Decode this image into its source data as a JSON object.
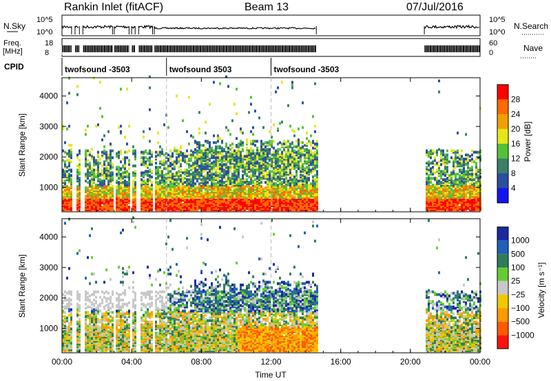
{
  "header": {
    "radar": "Rankin Inlet (fitACF)",
    "beam": "Beam 13",
    "date": "07/Jul/2016"
  },
  "noise_panel": {
    "left_label": "N.Sky",
    "left_ticks": [
      "10^5",
      "10^0"
    ],
    "right_label": "N.Search",
    "right_ticks": [
      "10^5",
      "10^0"
    ]
  },
  "freq_panel": {
    "left_label_1": "Freq.",
    "left_label_2": "[MHz]",
    "left_ticks": [
      "18",
      "8"
    ],
    "right_label": "Nave",
    "right_ticks": [
      "60",
      "0"
    ]
  },
  "cpid": {
    "label": "CPID",
    "segments": [
      {
        "start": 0,
        "end": 6,
        "label": "twofsound -3503"
      },
      {
        "start": 6,
        "end": 12,
        "label": "twofsound 3503"
      },
      {
        "start": 12,
        "end": 24,
        "label": "twofsound -3503"
      }
    ]
  },
  "colors": {
    "power_scale": [
      "#1414f0",
      "#2a4fa0",
      "#3a7f6a",
      "#55c03a",
      "#e6e61a",
      "#f0a000",
      "#ff6a00",
      "#ff0000"
    ],
    "velocity_scale": [
      "#1a2aa0",
      "#2060b8",
      "#2e7d5a",
      "#66cc33",
      "#c8c8c8",
      "#f0c800",
      "#ff9a00",
      "#ff5a00",
      "#ff1010"
    ]
  },
  "chart_data": [
    {
      "type": "heatmap",
      "panel": "power",
      "ylabel": "Slant Range [km]",
      "yticks": [
        "1000",
        "2000",
        "3000",
        "4000"
      ],
      "ylim": [
        200,
        4600
      ],
      "xlim": [
        0,
        24
      ],
      "cbar_label": "Power [dB]",
      "cbar_ticks": [
        "4",
        "8",
        "12",
        "16",
        "20",
        "24",
        "28"
      ],
      "data_intervals_hours": [
        [
          0,
          0.55
        ],
        [
          0.75,
          1.0
        ],
        [
          1.2,
          2.9
        ],
        [
          3.0,
          3.85
        ],
        [
          4.0,
          4.2
        ],
        [
          4.4,
          5.2
        ],
        [
          5.3,
          14.6
        ],
        [
          20.8,
          24
        ]
      ]
    },
    {
      "type": "heatmap",
      "panel": "velocity",
      "ylabel": "Slant Range [km]",
      "yticks": [
        "1000",
        "2000",
        "3000",
        "4000"
      ],
      "ylim": [
        200,
        4600
      ],
      "xlim": [
        0,
        24
      ],
      "xlabel": "Time UT",
      "xticks": [
        "00:00",
        "04:00",
        "08:00",
        "12:00",
        "16:00",
        "20:00",
        "00:00"
      ],
      "cbar_label": "Velocity [m s⁻¹]",
      "cbar_ticks": [
        "1000",
        "500",
        "100",
        "25",
        "−25",
        "−100",
        "−500",
        "−1000"
      ],
      "data_intervals_hours": [
        [
          0,
          0.55
        ],
        [
          0.75,
          1.0
        ],
        [
          1.2,
          2.9
        ],
        [
          3.0,
          3.85
        ],
        [
          4.0,
          4.2
        ],
        [
          4.4,
          5.2
        ],
        [
          5.3,
          14.6
        ],
        [
          20.8,
          24
        ]
      ]
    }
  ]
}
